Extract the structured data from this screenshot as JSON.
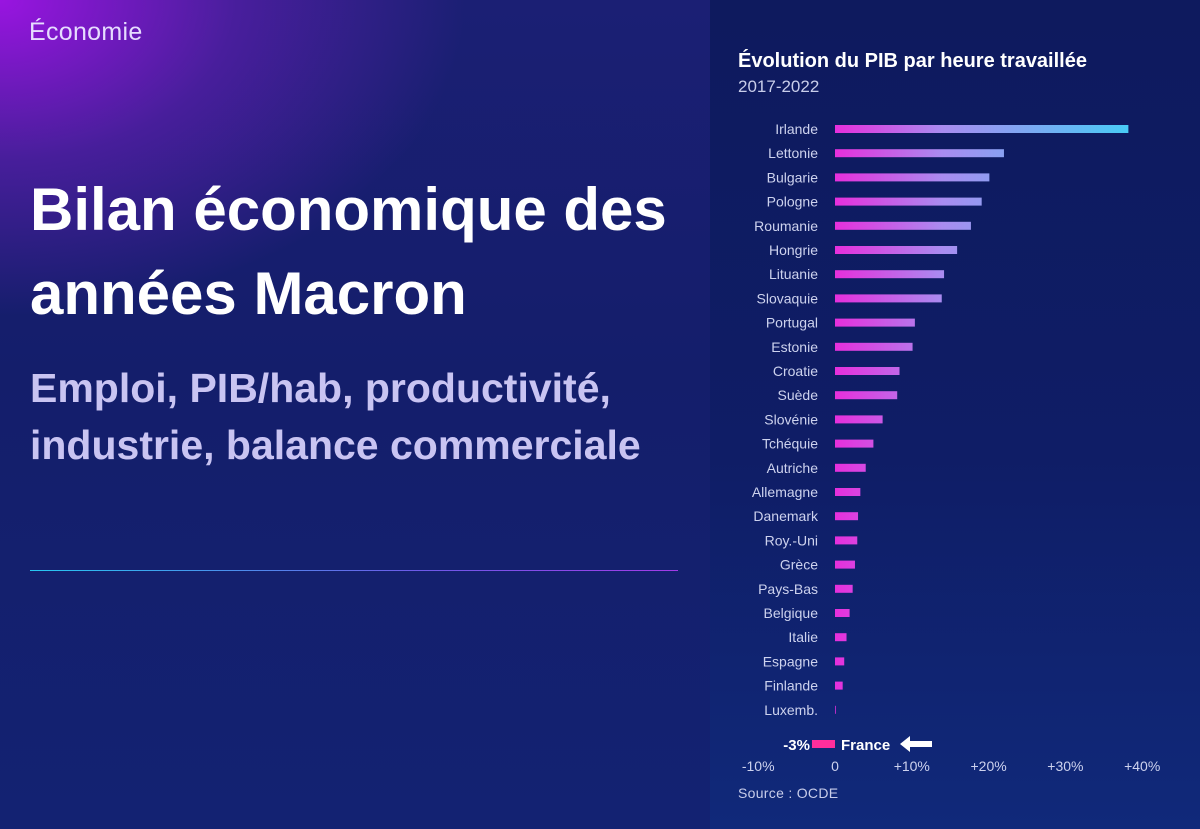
{
  "header": {
    "section": "Économie"
  },
  "hero": {
    "title": "Bilan économique des années Macron",
    "subtitle": "Emploi, PIB/hab, productivité, industrie, balance commerciale"
  },
  "chart_data": {
    "type": "bar",
    "orientation": "horizontal",
    "title": "Évolution du PIB par heure travaillée",
    "subtitle": "2017-2022",
    "source": "Source : OCDE",
    "categories": [
      "Irlande",
      "Lettonie",
      "Bulgarie",
      "Pologne",
      "Roumanie",
      "Hongrie",
      "Lituanie",
      "Slovaquie",
      "Portugal",
      "Estonie",
      "Croatie",
      "Suède",
      "Slovénie",
      "Tchéquie",
      "Autriche",
      "Allemagne",
      "Danemark",
      "Roy.-Uni",
      "Grèce",
      "Pays-Bas",
      "Belgique",
      "Italie",
      "Espagne",
      "Finlande",
      "Luxemb.",
      "France"
    ],
    "values": [
      38.2,
      22.0,
      20.1,
      19.1,
      17.7,
      15.9,
      14.2,
      13.9,
      10.4,
      10.1,
      8.4,
      8.1,
      6.2,
      5.0,
      4.0,
      3.3,
      3.0,
      2.9,
      2.6,
      2.3,
      1.9,
      1.5,
      1.2,
      1.0,
      0.1,
      -3
    ],
    "xlim": [
      -10,
      40
    ],
    "xticks": [
      -10,
      0,
      10,
      20,
      30,
      40
    ],
    "xtick_labels": [
      "-10%",
      "0",
      "+10%",
      "+20%",
      "+30%",
      "+40%"
    ],
    "annotation": {
      "label": "France",
      "value_label": "-3%"
    },
    "colors": {
      "bar_start": "#e62fdc",
      "bar_mid": "#a98cf0",
      "bar_end": "#41d0f6",
      "negative": "#ff2e9c",
      "accent": "#7a2fe0"
    },
    "grid": false,
    "legend": "none"
  }
}
